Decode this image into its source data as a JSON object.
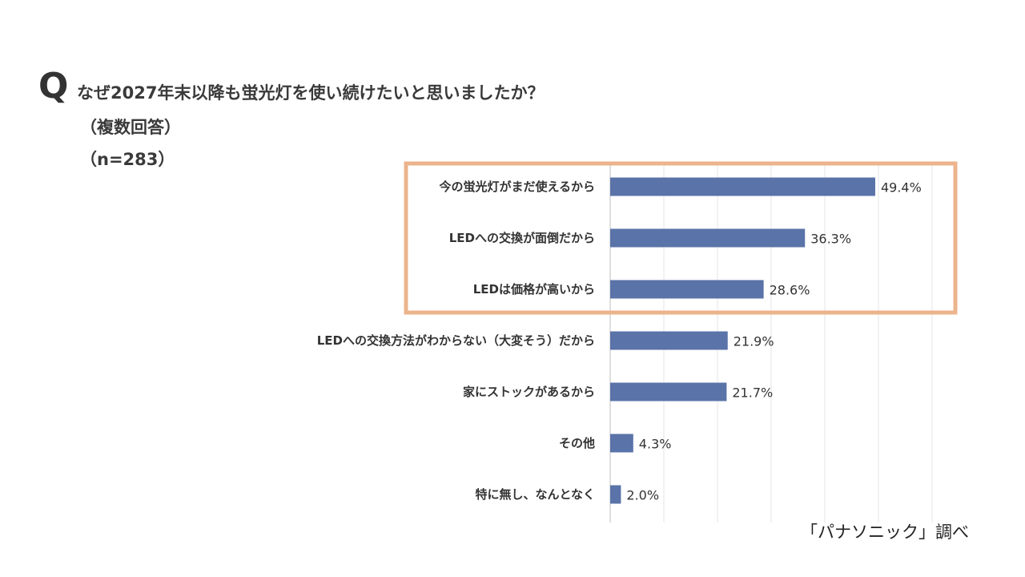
{
  "question": {
    "mark": "Q",
    "title": "なぜ2027年末以降も蛍光灯を使い続けたいと思いましたか？",
    "note": "（複数回答）",
    "sample": "（n=283）"
  },
  "credit": "「パナソニック」調べ",
  "colors": {
    "bar": "#5a73a8",
    "highlight_border": "#ecb48c",
    "grid": "#e4e4e4",
    "axis": "#bfbfbf"
  },
  "chart_data": {
    "type": "bar",
    "orientation": "horizontal",
    "categories": [
      "今の蛍光灯がまだ使えるから",
      "LEDへの交換が面倒だから",
      "LEDは価格が高いから",
      "LEDへの交換方法がわからない（大変そう）だから",
      "家にストックがあるから",
      "その他",
      "特に無し、なんとなく"
    ],
    "values": [
      49.4,
      36.3,
      28.6,
      21.9,
      21.7,
      4.3,
      2.0
    ],
    "value_labels": [
      "49.4%",
      "36.3%",
      "28.6%",
      "21.9%",
      "21.7%",
      "4.3%",
      "2.0%"
    ],
    "xlim": [
      0,
      60
    ],
    "grid": true,
    "highlighted_categories": [
      0,
      1,
      2
    ]
  }
}
